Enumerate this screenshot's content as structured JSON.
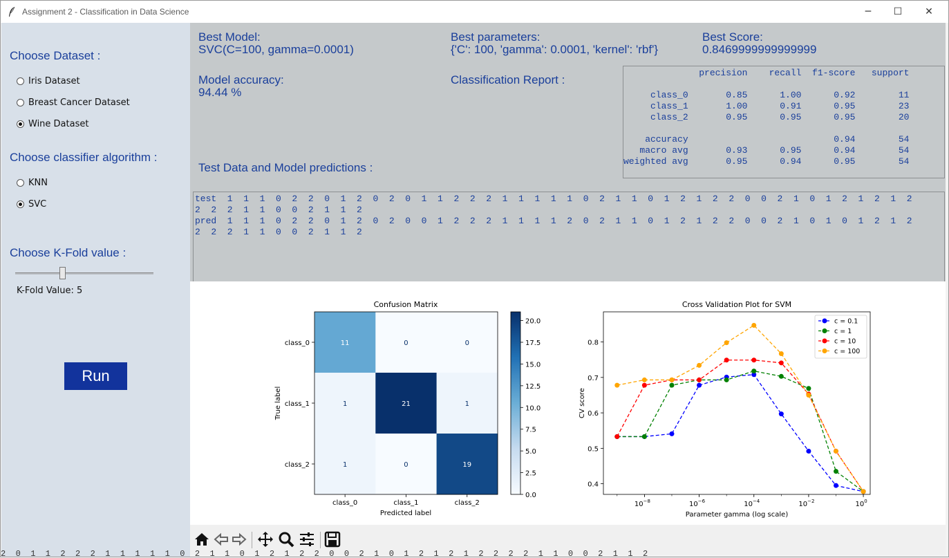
{
  "window": {
    "title": "Assignment 2 - Classification in Data Science",
    "minimize": "─",
    "maximize": "☐",
    "close": "✕"
  },
  "sidebar": {
    "dataset_heading": "Choose Dataset :",
    "datasets": [
      {
        "label": "Iris Dataset",
        "selected": false
      },
      {
        "label": "Breast Cancer Dataset",
        "selected": false
      },
      {
        "label": "Wine Dataset",
        "selected": true
      }
    ],
    "classifier_heading": "Choose classifier algorithm :",
    "classifiers": [
      {
        "label": "KNN",
        "selected": false
      },
      {
        "label": "SVC",
        "selected": true
      }
    ],
    "kfold_heading": "Choose K-Fold value :",
    "kfold_value": 5,
    "kfold_label": "K-Fold Value: 5",
    "run_label": "Run",
    "run_color": "#12339c"
  },
  "results": {
    "best_model_label": "Best Model:",
    "best_model_value": "SVC(C=100, gamma=0.0001)",
    "best_params_label": "Best parameters:",
    "best_params_value": "{'C': 100, 'gamma': 0.0001, 'kernel': 'rbf'}",
    "best_score_label": "Best Score:",
    "best_score_value": "0.8469999999999999",
    "accuracy_label": "Model accuracy:",
    "accuracy_value": "94.44 %",
    "report_label": "Classification Report :",
    "report_text": "              precision    recall  f1-score   support\n\n     class_0       0.85      1.00      0.92        11\n     class_1       1.00      0.91      0.95        23\n     class_2       0.95      0.95      0.95        20\n\n    accuracy                           0.94        54\n   macro avg       0.93      0.95      0.94        54\nweighted avg       0.95      0.94      0.95        54",
    "test_label": "Test Data and Model predictions :",
    "test_data_text": "test  1  1  1  0  2  2  0  1  2  0  2  0  1  1  2  2  2  1  1  1  1  1  0  2  1  1  0  1  2  1  2  2  0  0  2  1  0  1  2  1  2  1  2\n2  2  2  1  1  0  0  2  1  1  2\npred  1  1  1  0  2  2  0  1  2  0  2  0  0  1  2  2  2  1  1  1  1  2  0  2  1  1  0  1  2  1  2  2  0  0  2  1  0  1  0  1  2  1  2\n2  2  2  1  1  0  0  2  1  1  2",
    "accent_color": "#1a3f9b"
  },
  "chart_data": [
    {
      "type": "heatmap",
      "title": "Confusion Matrix",
      "xlabel": "Predicted label",
      "ylabel": "True label",
      "x_categories": [
        "class_0",
        "class_1",
        "class_2"
      ],
      "y_categories": [
        "class_0",
        "class_1",
        "class_2"
      ],
      "values": [
        [
          11,
          0,
          0
        ],
        [
          1,
          21,
          1
        ],
        [
          1,
          0,
          19
        ]
      ],
      "colorbar_ticks": [
        "0.0",
        "2.5",
        "5.0",
        "7.5",
        "10.0",
        "12.5",
        "15.0",
        "17.5",
        "20.0"
      ],
      "vmin": 0,
      "vmax": 21,
      "colormap": "Blues"
    },
    {
      "type": "line",
      "title": "Cross Validation Plot for SVM",
      "xlabel": "Parameter gamma (log scale)",
      "ylabel": "CV score",
      "x_log10": [
        -9,
        -8,
        -7,
        -6,
        -5,
        -4,
        -3,
        -2,
        -1,
        0
      ],
      "x_tick_exponents": [
        "−8",
        "−6",
        "−4",
        "−2",
        "0"
      ],
      "x_tick_values": [
        -8,
        -6,
        -4,
        -2,
        0
      ],
      "y_ticks": [
        "0.4",
        "0.5",
        "0.6",
        "0.7",
        "0.8"
      ],
      "y_tick_values": [
        0.4,
        0.5,
        0.6,
        0.7,
        0.8
      ],
      "ylim": [
        0.37,
        0.885
      ],
      "xlim": [
        -9.5,
        0.25
      ],
      "legend_position": "top-right",
      "series": [
        {
          "name": "c = 0.1",
          "color": "#0000ff",
          "values": [
            0.533,
            0.533,
            0.541,
            0.678,
            0.701,
            0.708,
            0.597,
            0.492,
            0.395,
            0.378
          ]
        },
        {
          "name": "c = 1",
          "color": "#008000",
          "values": [
            0.533,
            0.533,
            0.678,
            0.693,
            0.693,
            0.718,
            0.703,
            0.669,
            0.435,
            0.378
          ]
        },
        {
          "name": "c = 10",
          "color": "#ff0000",
          "values": [
            0.533,
            0.678,
            0.693,
            0.693,
            0.749,
            0.749,
            0.741,
            0.653,
            0.492,
            0.378
          ]
        },
        {
          "name": "c = 100",
          "color": "#ffa500",
          "values": [
            0.678,
            0.693,
            0.693,
            0.734,
            0.798,
            0.847,
            0.767,
            0.65,
            0.492,
            0.378
          ]
        }
      ]
    }
  ],
  "toolbar": {
    "icons": [
      "home-icon",
      "back-icon",
      "forward-icon",
      "pan-icon",
      "zoom-icon",
      "configure-icon",
      "save-icon"
    ]
  },
  "background_text": "2  0  1  1  2  2  2  1  1  1  1  1  0  2  1  1  0  1  2  1  2  2  0  0  2  1  0  1  2  1  2  1  2  2  2  2  1  1  0  0  2  1  1  2"
}
